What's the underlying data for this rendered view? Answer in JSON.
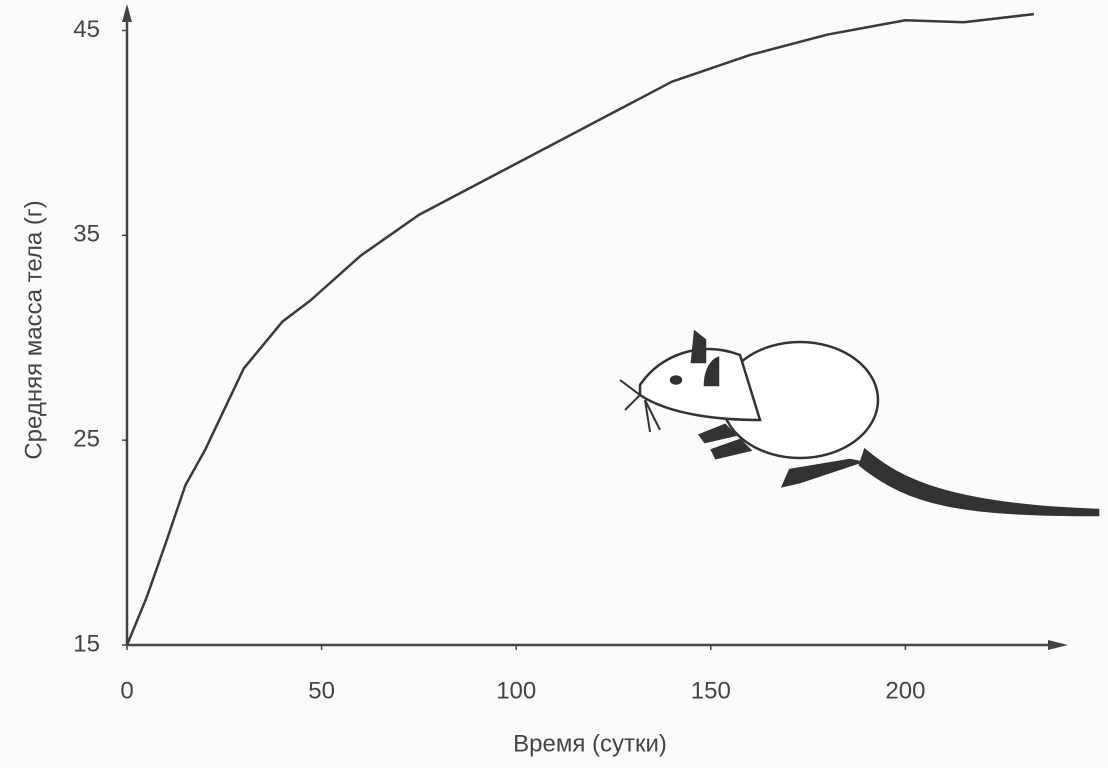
{
  "chart_data": {
    "type": "line",
    "x_label": "Время (сутки)",
    "y_label": "Средняя масса тела (г)",
    "x": [
      0,
      5,
      10,
      15,
      20,
      25,
      30,
      40,
      47,
      60,
      75,
      97,
      120,
      140,
      160,
      180,
      200,
      215,
      233
    ],
    "values": [
      15,
      17.3,
      20,
      22.8,
      24.5,
      26.5,
      28.5,
      30.8,
      31.8,
      34,
      36,
      38.2,
      40.5,
      42.5,
      43.8,
      44.8,
      45.5,
      45.4,
      45.8
    ],
    "color": "#3a3a3a",
    "xlim": [
      0,
      241
    ],
    "xticks": [
      0,
      50,
      100,
      150,
      200
    ],
    "ylim": [
      15,
      46
    ],
    "yticks": [
      15,
      25,
      35,
      45
    ],
    "grid": false
  }
}
